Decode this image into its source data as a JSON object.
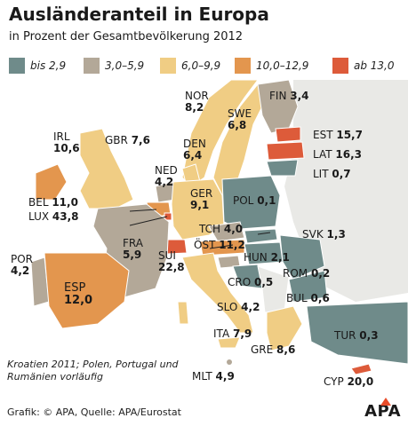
{
  "title": "Ausländeranteil in Europa",
  "subtitle": "in Prozent der Gesamtbevölkerung 2012",
  "legend": [
    {
      "label": "bis 2,9",
      "color": "#6f8b8a"
    },
    {
      "label": "3,0–5,9",
      "color": "#b3a898"
    },
    {
      "label": "6,0–9,9",
      "color": "#f0cd84"
    },
    {
      "label": "10,0–12,9",
      "color": "#e3964e"
    },
    {
      "label": "ab 13,0",
      "color": "#dd5b3a"
    }
  ],
  "countries": [
    {
      "code": "IRL",
      "value": "10,6"
    },
    {
      "code": "GBR",
      "value": "7,6"
    },
    {
      "code": "NOR",
      "value": "8,2"
    },
    {
      "code": "SWE",
      "value": "6,8"
    },
    {
      "code": "FIN",
      "value": "3,4"
    },
    {
      "code": "DEN",
      "value": "6,4"
    },
    {
      "code": "EST",
      "value": "15,7"
    },
    {
      "code": "LAT",
      "value": "16,3"
    },
    {
      "code": "LIT",
      "value": "0,7"
    },
    {
      "code": "NED",
      "value": "4,2"
    },
    {
      "code": "BEL",
      "value": "11,0"
    },
    {
      "code": "LUX",
      "value": "43,8"
    },
    {
      "code": "GER",
      "value": "9,1"
    },
    {
      "code": "POL",
      "value": "0,1"
    },
    {
      "code": "TCH",
      "value": "4,0"
    },
    {
      "code": "SVK",
      "value": "1,3"
    },
    {
      "code": "ÖST",
      "value": "11,2"
    },
    {
      "code": "FRA",
      "value": "5,9"
    },
    {
      "code": "SUI",
      "value": "22,8"
    },
    {
      "code": "HUN",
      "value": "2,1"
    },
    {
      "code": "ROM",
      "value": "0,2"
    },
    {
      "code": "CRO",
      "value": "0,5"
    },
    {
      "code": "POR",
      "value": "4,2"
    },
    {
      "code": "ESP",
      "value": "12,0"
    },
    {
      "code": "SLO",
      "value": "4,2"
    },
    {
      "code": "BUL",
      "value": "0,6"
    },
    {
      "code": "TUR",
      "value": "0,3"
    },
    {
      "code": "ITA",
      "value": "7,9"
    },
    {
      "code": "GRE",
      "value": "8,6"
    },
    {
      "code": "MLT",
      "value": "4,9"
    },
    {
      "code": "CYP",
      "value": "20,0"
    }
  ],
  "note": "Kroatien 2011; Polen, Portugal und Rumänien vorläufig",
  "footer": "Grafik: © APA, Quelle: APA/Eurostat",
  "logo": "APA"
}
